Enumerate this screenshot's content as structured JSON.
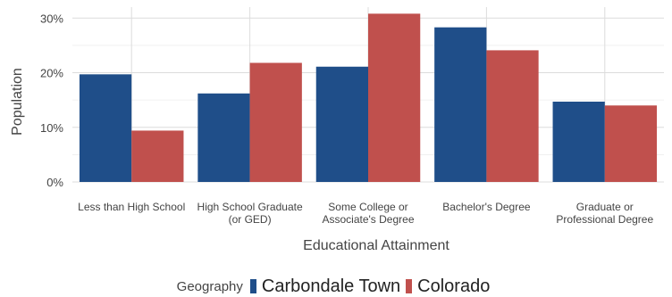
{
  "chart_data": {
    "type": "bar",
    "xlabel": "Educational Attainment",
    "ylabel": "Population",
    "ylim": [
      0,
      32
    ],
    "yticks": [
      0,
      10,
      20,
      30
    ],
    "ytick_labels": [
      "0%",
      "10%",
      "20%",
      "30%"
    ],
    "categories": [
      [
        "Less than High School"
      ],
      [
        "High School Graduate",
        "(or GED)"
      ],
      [
        "Some College or",
        "Associate's Degree"
      ],
      [
        "Bachelor's Degree"
      ],
      [
        "Graduate or",
        "Professional Degree"
      ]
    ],
    "series": [
      {
        "name": "Carbondale Town",
        "color": "#1f4e89",
        "values": [
          19.7,
          16.2,
          21.1,
          28.3,
          14.7
        ]
      },
      {
        "name": "Colorado",
        "color": "#c0504d",
        "values": [
          9.4,
          21.8,
          30.8,
          24.1,
          14.0
        ]
      }
    ],
    "grid": true,
    "legend": {
      "title": "Geography",
      "position": "bottom"
    }
  }
}
